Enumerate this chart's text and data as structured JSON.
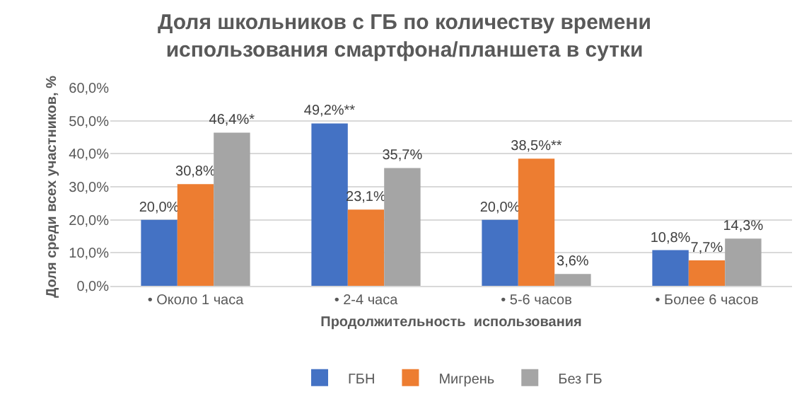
{
  "chart_data": {
    "type": "bar",
    "title": "Доля школьников с ГБ по количеству времени использования смартфона/планшета в сутки",
    "xlabel": "Продолжительность  использования",
    "ylabel": "Доля среди всех участников, %",
    "categories": [
      "• Около 1 часа",
      "• 2-4 часа",
      "• 5-6 часов",
      "• Более 6 часов"
    ],
    "series": [
      {
        "name": "ГБН",
        "color": "#4472c4",
        "values": [
          20.0,
          49.2,
          20.0,
          10.8
        ],
        "value_labels": [
          "20,0%",
          "49,2%**",
          "20,0%",
          "10,8%"
        ]
      },
      {
        "name": "Мигрень",
        "color": "#ed7d31",
        "values": [
          30.8,
          23.1,
          38.5,
          7.7
        ],
        "value_labels": [
          "30,8%",
          "23,1%",
          "38,5%**",
          "7,7%"
        ]
      },
      {
        "name": "Без ГБ",
        "color": "#a5a5a5",
        "values": [
          46.4,
          35.7,
          3.6,
          14.3
        ],
        "value_labels": [
          "46,4%*",
          "35,7%",
          "3,6%",
          "14,3%"
        ]
      }
    ],
    "ylim": [
      0,
      60
    ],
    "yticks": [
      {
        "value": 0,
        "label": "0,0%"
      },
      {
        "value": 10,
        "label": "10,0%"
      },
      {
        "value": 20,
        "label": "20,0%"
      },
      {
        "value": 30,
        "label": "30,0%"
      },
      {
        "value": 40,
        "label": "40,0%"
      },
      {
        "value": 50,
        "label": "50,0%"
      },
      {
        "value": 60,
        "label": "60,0%"
      }
    ],
    "grid": "y",
    "legend": "bottom"
  }
}
